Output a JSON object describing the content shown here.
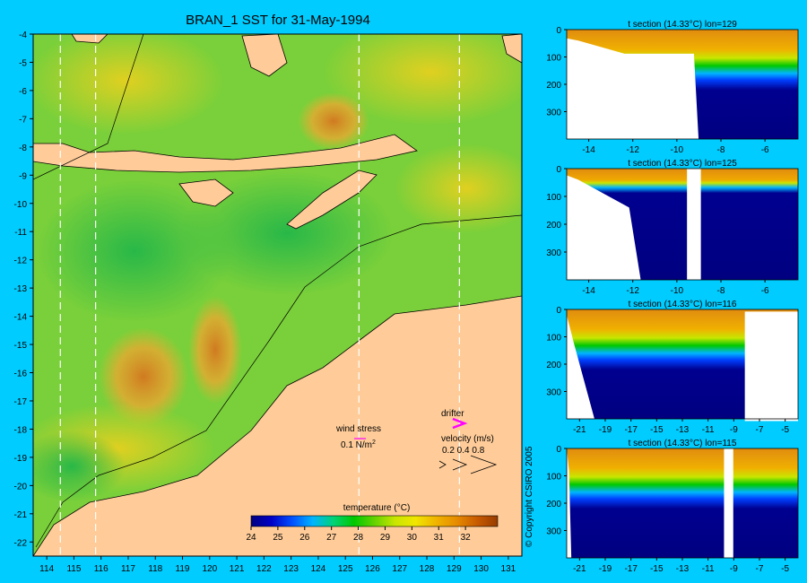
{
  "title": "BRAN_1 SST for 31-May-1994",
  "map": {
    "lon_ticks": [
      114,
      115,
      116,
      117,
      118,
      119,
      120,
      121,
      122,
      123,
      124,
      125,
      126,
      127,
      128,
      129,
      130,
      131
    ],
    "lat_ticks": [
      -4,
      -5,
      -6,
      -7,
      -8,
      -9,
      -10,
      -11,
      -12,
      -13,
      -14,
      -15,
      -16,
      -17,
      -18,
      -19,
      -20,
      -21,
      -22
    ],
    "section_lons": [
      114.5,
      115.8,
      125.5,
      129.2
    ],
    "colorbar": {
      "label": "temperature (°C)",
      "ticks": [
        24,
        25,
        26,
        27,
        28,
        29,
        30,
        31,
        32
      ],
      "colors": [
        "#000080",
        "#0000c8",
        "#0050ff",
        "#00b4ff",
        "#00d278",
        "#00c800",
        "#64d200",
        "#c8e600",
        "#f0e600",
        "#f0b400",
        "#e68c00",
        "#c85a00",
        "#963c00"
      ]
    },
    "wind_label": "wind stress",
    "wind_scale": "0.1 N/m",
    "wind_scale_sup": "2",
    "drifter_label": "drifter",
    "velocity_label": "velocity (m/s)",
    "velocity_scale": "0.2 0.4 0.8",
    "colors": {
      "background": "#00ccff",
      "land": "#ffcc99",
      "sea_base": "#7ad03a",
      "warm": "#e8a020",
      "hot": "#c87828",
      "drifter": "#ff00ff"
    }
  },
  "sections": [
    {
      "title": "t section (14.33°C) lon=129",
      "x_ticks": [
        "-14",
        "-12",
        "-10",
        "-8",
        "-6"
      ],
      "y_ticks": [
        "0",
        "100",
        "200",
        "300"
      ]
    },
    {
      "title": "t section (14.33°C) lon=125",
      "x_ticks": [
        "-14",
        "-12",
        "-10",
        "-8",
        "-6"
      ],
      "y_ticks": [
        "0",
        "100",
        "200",
        "300"
      ]
    },
    {
      "title": "t section (14.33°C) lon=116",
      "x_ticks": [
        "-21",
        "-19",
        "-17",
        "-15",
        "-13",
        "-11",
        "-9",
        "-7",
        "-5"
      ],
      "y_ticks": [
        "0",
        "100",
        "200",
        "300"
      ]
    },
    {
      "title": "t section (14.33°C) lon=115",
      "x_ticks": [
        "-21",
        "-19",
        "-17",
        "-15",
        "-13",
        "-11",
        "-9",
        "-7",
        "-5"
      ],
      "y_ticks": [
        "0",
        "100",
        "200",
        "300"
      ]
    }
  ],
  "copyright": "© Copyright CSIRO 2005"
}
